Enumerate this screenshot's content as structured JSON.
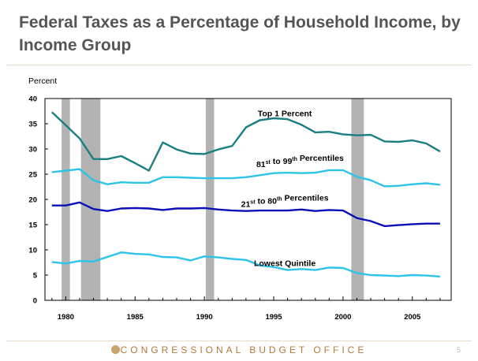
{
  "slide": {
    "title": "Federal Taxes as a Percentage of Household Income, by Income Group",
    "footer": "CONGRESSIONAL BUDGET OFFICE",
    "page_number": "5"
  },
  "chart_data": {
    "type": "line",
    "title": "",
    "ylabel": "Percent",
    "xlabel": "",
    "xlim": [
      1978.5,
      2007.8
    ],
    "ylim": [
      0,
      40
    ],
    "yticks": [
      0,
      5,
      10,
      15,
      20,
      25,
      30,
      35,
      40
    ],
    "xticks": [
      1980,
      1985,
      1990,
      1995,
      2000,
      2005
    ],
    "grid": false,
    "legend": "none",
    "recessions": [
      [
        1979.7,
        1980.3
      ],
      [
        1981.1,
        1982.5
      ],
      [
        1990.1,
        1990.7
      ],
      [
        2000.6,
        2001.5
      ]
    ],
    "recession_color": "#b3b3b3",
    "x": [
      1979,
      1980,
      1981,
      1982,
      1983,
      1984,
      1985,
      1986,
      1987,
      1988,
      1989,
      1990,
      1991,
      1992,
      1993,
      1994,
      1995,
      1996,
      1997,
      1998,
      1999,
      2000,
      2001,
      2002,
      2003,
      2004,
      2005,
      2006,
      2007
    ],
    "series": [
      {
        "name": "Top 1 Percent",
        "color": "#1b7f80",
        "values": [
          37.3,
          34.7,
          32.1,
          28.0,
          28.0,
          28.6,
          27.2,
          25.7,
          31.3,
          29.9,
          29.1,
          29.0,
          29.9,
          30.6,
          34.3,
          35.7,
          36.1,
          35.9,
          34.8,
          33.3,
          33.4,
          32.9,
          32.7,
          32.8,
          31.5,
          31.4,
          31.7,
          31.1,
          29.5
        ],
        "label_x": 1995.8,
        "label_y": 36.5
      },
      {
        "name": "81st to 99th Percentiles",
        "color": "#2dc4e8",
        "values": [
          25.4,
          25.7,
          26.0,
          23.8,
          23.0,
          23.4,
          23.3,
          23.3,
          24.4,
          24.4,
          24.3,
          24.2,
          24.2,
          24.2,
          24.4,
          24.8,
          25.2,
          25.3,
          25.2,
          25.3,
          25.8,
          25.8,
          24.5,
          23.8,
          22.6,
          22.7,
          23.0,
          23.2,
          22.9
        ],
        "label_x": 1996.9,
        "label_y": 26.4
      },
      {
        "name": "21st to 80th Percentiles",
        "color": "#0a0fb8",
        "values": [
          18.8,
          18.8,
          19.4,
          18.1,
          17.7,
          18.2,
          18.3,
          18.2,
          17.9,
          18.2,
          18.2,
          18.3,
          18.0,
          17.8,
          17.7,
          17.8,
          17.8,
          17.8,
          18.0,
          17.7,
          17.9,
          17.8,
          16.3,
          15.7,
          14.7,
          14.9,
          15.1,
          15.2,
          15.2
        ],
        "label_x": 1995.8,
        "label_y": 18.5
      },
      {
        "name": "Lowest Quintile",
        "color": "#2dc4e8",
        "values": [
          7.6,
          7.3,
          7.8,
          7.7,
          8.6,
          9.5,
          9.2,
          9.1,
          8.6,
          8.5,
          7.9,
          8.7,
          8.5,
          8.2,
          8.0,
          6.9,
          6.6,
          6.0,
          6.2,
          6.0,
          6.5,
          6.4,
          5.4,
          5.0,
          4.9,
          4.8,
          5.0,
          4.9,
          4.7
        ],
        "label_x": 1995.8,
        "label_y": 6.8
      }
    ]
  }
}
